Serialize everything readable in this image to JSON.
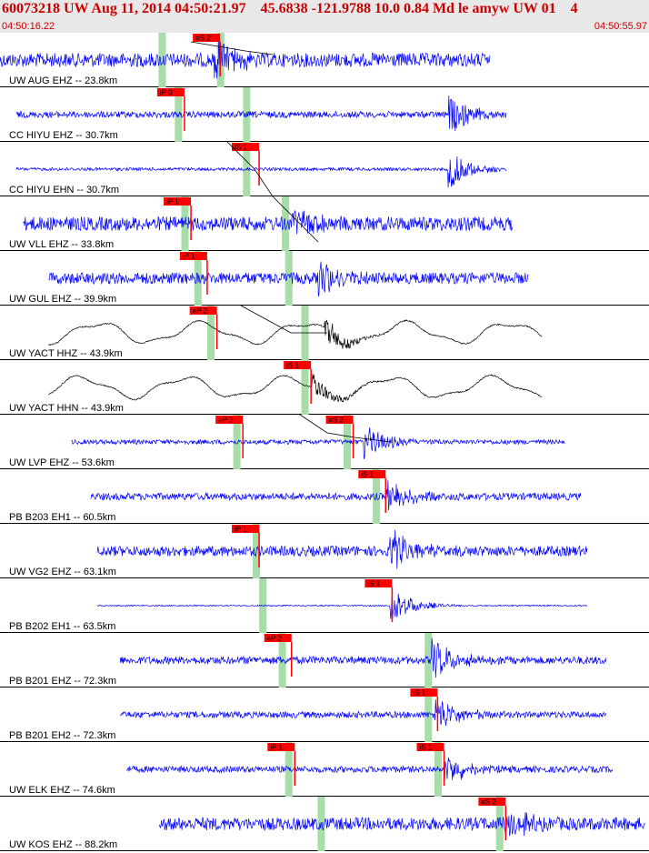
{
  "header": {
    "title": "60073218 UW Aug 11, 2014 04:50:21.97    45.6838 -121.9788 10.0 0.84 Md le amyw UW 01    4",
    "start_time": "04:50:16.22",
    "end_time": "04:50:55.97"
  },
  "colors": {
    "trace_blue": "#0000ff",
    "trace_black": "#000000",
    "pick_red": "#ff0000",
    "window_green": "#a8dca8",
    "header_bg": "#e8e8e8",
    "header_text": "#cc0000"
  },
  "channels": [
    {
      "label": "UW AUG EHZ -- 23.8km",
      "color": "blue",
      "start": 0.0,
      "end": 0.755,
      "noise": 0.55,
      "wiggle": 0.0,
      "arrival": 0.33,
      "amp": 1.0,
      "picks": [
        {
          "label": "eS 2",
          "pos": 0.3,
          "green": 0.25
        },
        {
          "label": "",
          "pos": 0.33,
          "green": 0.34
        }
      ]
    },
    {
      "label": "CC HIYU EHZ -- 30.7km",
      "color": "blue",
      "start": 0.025,
      "end": 0.78,
      "noise": 0.25,
      "wiggle": 0.0,
      "arrival": 0.69,
      "amp": 0.9,
      "picks": [
        {
          "label": "iP 0",
          "pos": 0.245,
          "green": 0.275
        },
        {
          "label": "",
          "pos": 0.48,
          "green": 0.38
        }
      ]
    },
    {
      "label": "CC HIYU EHN -- 30.7km",
      "color": "blue",
      "start": 0.025,
      "end": 0.78,
      "noise": 0.12,
      "wiggle": 0.0,
      "arrival": 0.69,
      "amp": 0.9,
      "picks": [
        {
          "label": "iS 1",
          "pos": 0.36,
          "green": 0.38
        }
      ]
    },
    {
      "label": "UW VLL EHZ -- 33.8km",
      "color": "blue",
      "start": 0.035,
      "end": 0.79,
      "noise": 0.55,
      "wiggle": 0.0,
      "arrival": 0.45,
      "amp": 0.8,
      "picks": [
        {
          "label": "iP 1",
          "pos": 0.255,
          "green": 0.285
        },
        {
          "label": "",
          "pos": 0.44,
          "green": 0.44
        }
      ]
    },
    {
      "label": "UW GUL EHZ -- 39.9km",
      "color": "blue",
      "start": 0.075,
      "end": 0.815,
      "noise": 0.45,
      "wiggle": 0.0,
      "arrival": 0.49,
      "amp": 0.8,
      "picks": [
        {
          "label": "iP 1",
          "pos": 0.28,
          "green": 0.305
        },
        {
          "label": "",
          "pos": 0.49,
          "green": 0.445
        }
      ]
    },
    {
      "label": "UW YACT HHZ -- 43.9km",
      "color": "black",
      "start": 0.075,
      "end": 0.835,
      "noise": 0.05,
      "wiggle": 0.75,
      "arrival": 0.5,
      "amp": 0.7,
      "picks": [
        {
          "label": "eP 2",
          "pos": 0.295,
          "green": 0.325
        },
        {
          "label": "",
          "pos": 0.52,
          "green": 0.47
        }
      ]
    },
    {
      "label": "UW YACT HHN -- 43.9km",
      "color": "black",
      "start": 0.075,
      "end": 0.835,
      "noise": 0.05,
      "wiggle": 0.75,
      "arrival": 0.48,
      "amp": 0.6,
      "picks": [
        {
          "label": "iS 1",
          "pos": 0.44,
          "green": 0.47
        }
      ]
    },
    {
      "label": "UW LVP EHZ -- 53.6km",
      "color": "blue",
      "start": 0.11,
      "end": 0.87,
      "noise": 0.18,
      "wiggle": 0.0,
      "arrival": 0.56,
      "amp": 0.8,
      "picks": [
        {
          "label": "eP 2",
          "pos": 0.335,
          "green": 0.365
        },
        {
          "label": "eS 2",
          "pos": 0.505,
          "green": 0.535
        }
      ]
    },
    {
      "label": "PB B203 EH1 -- 60.5km",
      "color": "blue",
      "start": 0.14,
      "end": 0.895,
      "noise": 0.28,
      "wiggle": 0.0,
      "arrival": 0.595,
      "amp": 0.9,
      "picks": [
        {
          "label": "iS 1",
          "pos": 0.555,
          "green": 0.58
        }
      ]
    },
    {
      "label": "UW VG2 EHZ -- 63.1km",
      "color": "blue",
      "start": 0.15,
      "end": 0.905,
      "noise": 0.4,
      "wiggle": 0.0,
      "arrival": 0.6,
      "amp": 1.0,
      "picks": [
        {
          "label": "iP 1",
          "pos": 0.36,
          "green": 0.395
        }
      ]
    },
    {
      "label": "PB B202 EH1 -- 63.5km",
      "color": "blue",
      "start": 0.15,
      "end": 0.905,
      "noise": 0.05,
      "wiggle": 0.0,
      "arrival": 0.6,
      "amp": 0.9,
      "picks": [
        {
          "label": "iS 1",
          "pos": 0.565,
          "green": 0.405
        }
      ]
    },
    {
      "label": "PB B201 EHZ -- 72.3km",
      "color": "blue",
      "start": 0.185,
      "end": 0.935,
      "noise": 0.3,
      "wiggle": 0.0,
      "arrival": 0.665,
      "amp": 0.9,
      "picks": [
        {
          "label": "eP 2",
          "pos": 0.41,
          "green": 0.435
        },
        {
          "label": "",
          "pos": 0.665,
          "green": 0.66
        }
      ]
    },
    {
      "label": "PB B201 EH2 -- 72.3km",
      "color": "blue",
      "start": 0.185,
      "end": 0.935,
      "noise": 0.25,
      "wiggle": 0.0,
      "arrival": 0.67,
      "amp": 0.9,
      "picks": [
        {
          "label": "iS 1",
          "pos": 0.635,
          "green": 0.66
        }
      ]
    },
    {
      "label": "UW ELK EHZ -- 74.6km",
      "color": "blue",
      "start": 0.195,
      "end": 0.945,
      "noise": 0.25,
      "wiggle": 0.0,
      "arrival": 0.685,
      "amp": 0.8,
      "picks": [
        {
          "label": "iP 1",
          "pos": 0.415,
          "green": 0.445
        },
        {
          "label": "iS 1",
          "pos": 0.645,
          "green": 0.675
        }
      ]
    },
    {
      "label": "UW KOS EHZ -- 88.2km",
      "color": "blue",
      "start": 0.245,
      "end": 0.995,
      "noise": 0.5,
      "wiggle": 0.0,
      "arrival": 0.775,
      "amp": 0.8,
      "picks": [
        {
          "label": "eS 2",
          "pos": 0.74,
          "green": 0.77
        },
        {
          "label": "",
          "pos": 0.49,
          "green": 0.495
        }
      ]
    }
  ]
}
